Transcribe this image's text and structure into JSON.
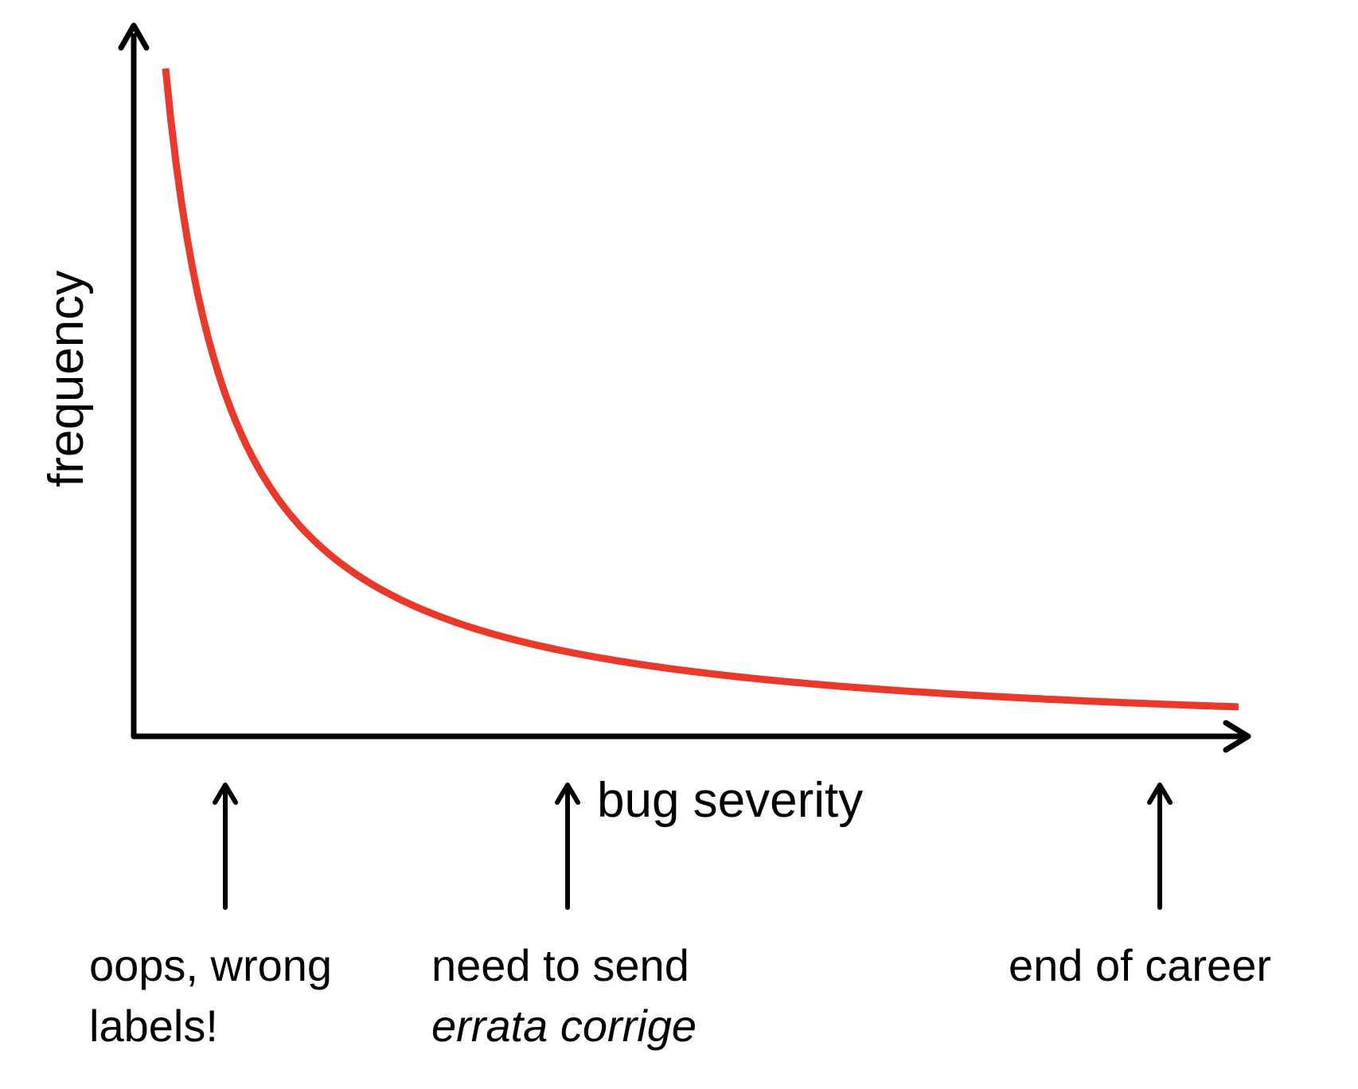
{
  "chart_data": {
    "type": "line",
    "xlabel": "bug severity",
    "ylabel": "frequency",
    "title": "",
    "grid": false,
    "legend": "none",
    "curve_color": "#e8392a",
    "axis_color": "#000000",
    "annotations": [
      {
        "lines": [
          {
            "text": "oops, wrong",
            "style": "normal"
          },
          {
            "text": "labels!",
            "style": "normal"
          }
        ]
      },
      {
        "lines": [
          {
            "text": "need to send",
            "style": "normal"
          },
          {
            "text": "errata corrige",
            "style": "italic"
          }
        ]
      },
      {
        "lines": [
          {
            "text": "end of career",
            "style": "normal"
          }
        ]
      }
    ]
  }
}
